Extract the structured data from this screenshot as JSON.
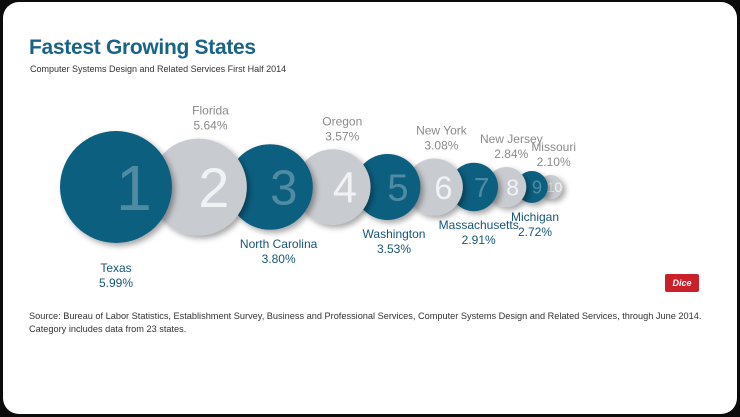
{
  "header": {
    "title": "Fastest Growing States",
    "subtitle": "Computer Systems Design and Related Services First Half 2014"
  },
  "chart_data": {
    "type": "bubble",
    "title": "Fastest Growing States",
    "subtitle": "Computer Systems Design and Related Services First Half 2014",
    "unit": "%",
    "colors": {
      "dark": "#115e80",
      "light": "#c8cbd0",
      "label_dark": "#15557a",
      "label_light": "#8a8a8a"
    },
    "series": [
      {
        "rank": "1",
        "state": "Texas",
        "value": 5.99,
        "value_label": "5.99%"
      },
      {
        "rank": "2",
        "state": "Florida",
        "value": 5.64,
        "value_label": "5.64%"
      },
      {
        "rank": "3",
        "state": "North Carolina",
        "value": 3.8,
        "value_label": "3.80%"
      },
      {
        "rank": "4",
        "state": "Oregon",
        "value": 3.57,
        "value_label": "3.57%"
      },
      {
        "rank": "5",
        "state": "Washington",
        "value": 3.53,
        "value_label": "3.53%"
      },
      {
        "rank": "6",
        "state": "New York",
        "value": 3.08,
        "value_label": "3.08%"
      },
      {
        "rank": "7",
        "state": "Massachusetts",
        "value": 2.91,
        "value_label": "2.91%"
      },
      {
        "rank": "8",
        "state": "New Jersey",
        "value": 2.84,
        "value_label": "2.84%"
      },
      {
        "rank": "9",
        "state": "Michigan",
        "value": 2.72,
        "value_label": "2.72%"
      },
      {
        "rank": "10",
        "state": "Missouri",
        "value": 2.1,
        "value_label": "2.10%"
      }
    ]
  },
  "footer": {
    "source_line1": "Source: Bureau of Labor Statistics, Establishment Survey, Business and Professional Services, Computer Systems Design and Related Services, through June 2014.",
    "source_line2": "Category includes data from 23 states.",
    "logo_text": "Dice"
  }
}
